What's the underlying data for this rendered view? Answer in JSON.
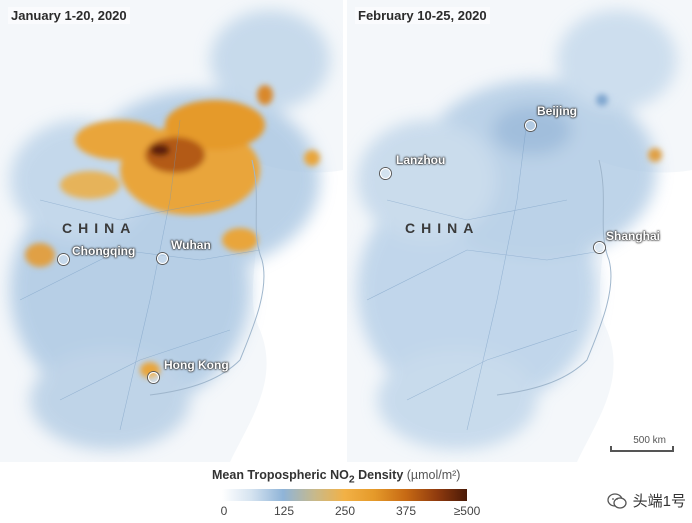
{
  "panels": {
    "left": {
      "title": "January 1-20, 2020",
      "country": "CHINA",
      "cities": [
        "Chongqing",
        "Wuhan",
        "Hong Kong"
      ]
    },
    "right": {
      "title": "February 10-25, 2020",
      "country": "CHINA",
      "cities": [
        "Beijing",
        "Lanzhou",
        "Shanghai"
      ],
      "scale": "500 km"
    }
  },
  "legend": {
    "title": "Mean Tropospheric NO",
    "title_sub": "2",
    "title_rest": " Density ",
    "unit": "(µmol/m²)",
    "ticks": [
      "0",
      "125",
      "250",
      "375",
      "≥500"
    ],
    "colors": [
      "#ffffff",
      "#8fb4d8",
      "#f2b146",
      "#c76a14",
      "#4a1a07"
    ]
  },
  "watermark": {
    "text": "头端1号"
  },
  "colors": {
    "land": "#eef3f8",
    "pollution_high": "#e59a2a",
    "pollution_low": "#8fb4d8"
  }
}
